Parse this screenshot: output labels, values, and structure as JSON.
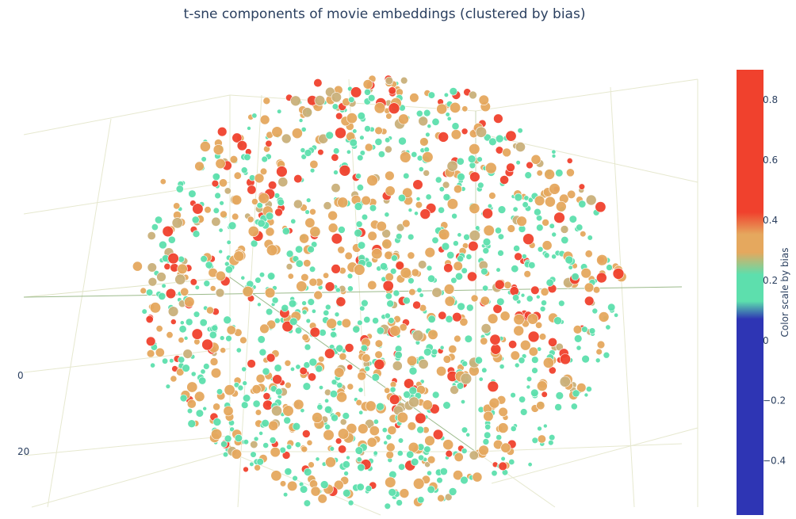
{
  "chart_data": {
    "type": "scatter",
    "mode": "3d",
    "title": "t-sne components of movie embeddings (clustered by bias)",
    "axis_tick_labels": [
      "0",
      "20"
    ],
    "colorbar": {
      "title": "Color scale by bias",
      "range": [
        -0.58,
        0.9
      ],
      "ticks": [
        0.8,
        0.6,
        0.4,
        0.2,
        0,
        -0.2,
        -0.4
      ],
      "tick_labels": [
        "0.8",
        "0.6",
        "0.4",
        "0.2",
        "0",
        "−0.2",
        "−0.4"
      ],
      "colors": {
        "high": "#f0412d",
        "upper": "#e5a85e",
        "mid": "#5ddfad",
        "low": "#2e35b4"
      }
    },
    "point_colors": [
      "#f0412d",
      "#e5a85e",
      "#5ddfad",
      "#c9b07a"
    ],
    "background": "#ffffff",
    "grid_color": "#e6e8cf",
    "axis_line_color": "#9bba8a"
  }
}
